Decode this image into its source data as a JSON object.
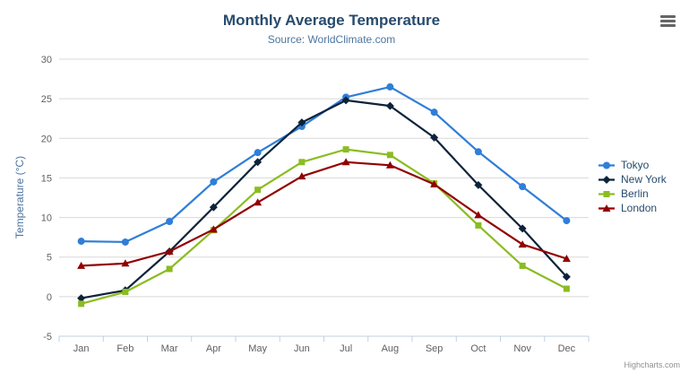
{
  "chart_data": {
    "type": "line",
    "title": "Monthly Average Temperature",
    "subtitle": "Source: WorldClimate.com",
    "categories": [
      "Jan",
      "Feb",
      "Mar",
      "Apr",
      "May",
      "Jun",
      "Jul",
      "Aug",
      "Sep",
      "Oct",
      "Nov",
      "Dec"
    ],
    "xlabel": "",
    "ylabel": "Temperature (°C)",
    "yAxis": {
      "title": "Temperature (°C)",
      "min": -5,
      "max": 30,
      "tickInterval": 5,
      "ticks": [
        -5,
        0,
        5,
        10,
        15,
        20,
        25,
        30
      ]
    },
    "grid": true,
    "legend_position": "right",
    "series": [
      {
        "name": "Tokyo",
        "color": "#2f7ed8",
        "marker": "circle",
        "values": [
          7.0,
          6.9,
          9.5,
          14.5,
          18.2,
          21.5,
          25.2,
          26.5,
          23.3,
          18.3,
          13.9,
          9.6
        ]
      },
      {
        "name": "New York",
        "color": "#0d233a",
        "marker": "diamond",
        "values": [
          -0.2,
          0.8,
          5.7,
          11.3,
          17.0,
          22.0,
          24.8,
          24.1,
          20.1,
          14.1,
          8.6,
          2.5
        ]
      },
      {
        "name": "Berlin",
        "color": "#8bbc21",
        "marker": "square",
        "values": [
          -0.9,
          0.6,
          3.5,
          8.4,
          13.5,
          17.0,
          18.6,
          17.9,
          14.3,
          9.0,
          3.9,
          1.0
        ]
      },
      {
        "name": "London",
        "color": "#910000",
        "marker": "triangle",
        "values": [
          3.9,
          4.2,
          5.7,
          8.5,
          11.9,
          15.2,
          17.0,
          16.6,
          14.2,
          10.3,
          6.6,
          4.8
        ]
      }
    ],
    "colors": {
      "title_text": "#274b6d",
      "subtitle_text": "#4d759e",
      "axis_label_text": "#606060",
      "axis_title_text": "#4d759e",
      "gridline": "#d8d8d8",
      "axis_line": "#c0d0e0",
      "legend_text": "#274b6d",
      "credits_text": "#909090",
      "menu_icon": "#666666"
    }
  },
  "icons": {
    "context_menu": "hamburger-menu-icon"
  },
  "credits": {
    "label": "Highcharts.com"
  }
}
